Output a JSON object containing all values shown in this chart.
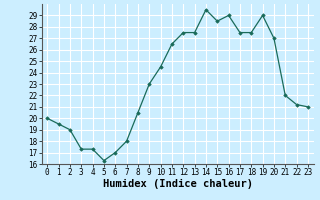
{
  "xlabel": "Humidex (Indice chaleur)",
  "x": [
    0,
    1,
    2,
    3,
    4,
    5,
    6,
    7,
    8,
    9,
    10,
    11,
    12,
    13,
    14,
    15,
    16,
    17,
    18,
    19,
    20,
    21,
    22,
    23
  ],
  "y": [
    20.0,
    19.5,
    19.0,
    17.3,
    17.3,
    16.3,
    17.0,
    18.0,
    20.5,
    23.0,
    24.5,
    26.5,
    27.5,
    27.5,
    29.5,
    28.5,
    29.0,
    27.5,
    27.5,
    29.0,
    27.0,
    22.0,
    21.2,
    21.0
  ],
  "xlim": [
    -0.5,
    23.5
  ],
  "ylim": [
    16,
    30
  ],
  "yticks": [
    16,
    17,
    18,
    19,
    20,
    21,
    22,
    23,
    24,
    25,
    26,
    27,
    28,
    29
  ],
  "xticks": [
    0,
    1,
    2,
    3,
    4,
    5,
    6,
    7,
    8,
    9,
    10,
    11,
    12,
    13,
    14,
    15,
    16,
    17,
    18,
    19,
    20,
    21,
    22,
    23
  ],
  "line_color": "#1a6b5a",
  "marker": "D",
  "marker_size": 1.8,
  "bg_color": "#cceeff",
  "grid_color": "#ffffff",
  "tick_label_fontsize": 5.5,
  "xlabel_fontsize": 7.5
}
